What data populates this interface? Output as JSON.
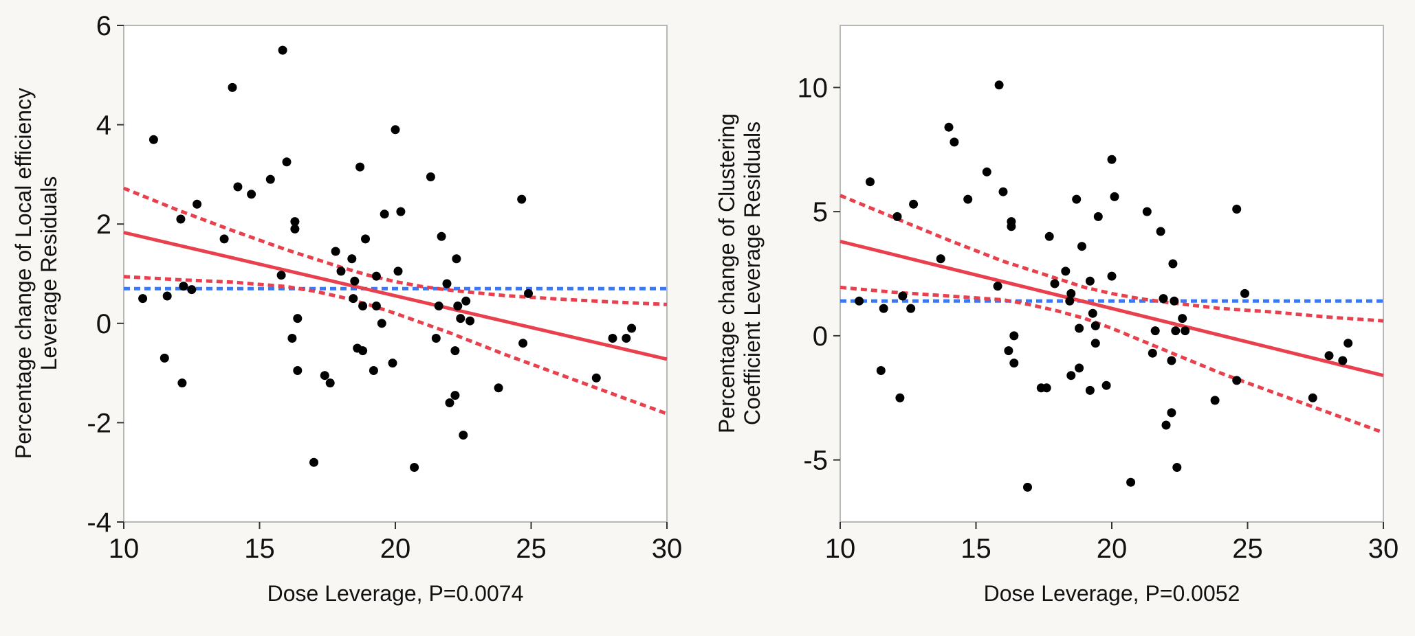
{
  "chart_data": [
    {
      "type": "scatter",
      "title": "",
      "xlabel": "Dose Leverage, P=0.0074",
      "ylabel": [
        "Percentage change of  Local efficiency",
        "Leverage Residuals"
      ],
      "xlim": [
        10,
        30
      ],
      "ylim": [
        -4,
        6
      ],
      "xticks": [
        10,
        15,
        20,
        25,
        30
      ],
      "yticks": [
        -4,
        -2,
        0,
        2,
        4,
        6
      ],
      "grid": false,
      "colors": {
        "points": "#000000",
        "fit": "#e8414d",
        "ci": "#e8414d",
        "mean": "#3b78f2",
        "frame": "#b8b8b8"
      },
      "mean_line": {
        "y": 0.7
      },
      "fit_line": {
        "x": [
          10,
          30
        ],
        "y": [
          1.83,
          -0.72
        ]
      },
      "ci_upper": {
        "x": [
          10,
          12,
          14,
          16,
          18,
          19,
          20,
          21,
          22,
          24,
          26,
          28,
          30
        ],
        "y": [
          2.72,
          2.28,
          1.87,
          1.48,
          1.13,
          0.97,
          0.84,
          0.74,
          0.67,
          0.56,
          0.49,
          0.43,
          0.38
        ]
      },
      "ci_lower": {
        "x": [
          10,
          12,
          14,
          16,
          17,
          18,
          19,
          20,
          22,
          24,
          26,
          28,
          30
        ],
        "y": [
          0.94,
          0.88,
          0.83,
          0.74,
          0.65,
          0.53,
          0.38,
          0.2,
          -0.19,
          -0.62,
          -1.02,
          -1.42,
          -1.82
        ]
      },
      "points": [
        {
          "x": 10.7,
          "y": 0.5
        },
        {
          "x": 11.1,
          "y": 3.7
        },
        {
          "x": 11.5,
          "y": -0.7
        },
        {
          "x": 11.6,
          "y": 0.55
        },
        {
          "x": 12.1,
          "y": 2.1
        },
        {
          "x": 12.15,
          "y": -1.2
        },
        {
          "x": 12.2,
          "y": 0.75
        },
        {
          "x": 12.5,
          "y": 0.68
        },
        {
          "x": 12.7,
          "y": 2.4
        },
        {
          "x": 13.7,
          "y": 1.7
        },
        {
          "x": 14.0,
          "y": 4.75
        },
        {
          "x": 14.2,
          "y": 2.75
        },
        {
          "x": 14.7,
          "y": 2.6
        },
        {
          "x": 15.4,
          "y": 2.9
        },
        {
          "x": 15.8,
          "y": 0.97
        },
        {
          "x": 15.85,
          "y": 5.5
        },
        {
          "x": 16.0,
          "y": 3.25
        },
        {
          "x": 16.2,
          "y": -0.3
        },
        {
          "x": 16.3,
          "y": 2.05
        },
        {
          "x": 16.3,
          "y": 1.9
        },
        {
          "x": 16.4,
          "y": 0.1
        },
        {
          "x": 16.4,
          "y": -0.95
        },
        {
          "x": 17.0,
          "y": -2.8
        },
        {
          "x": 17.4,
          "y": -1.05
        },
        {
          "x": 17.6,
          "y": -1.2
        },
        {
          "x": 17.8,
          "y": 1.45
        },
        {
          "x": 18.0,
          "y": 1.05
        },
        {
          "x": 18.4,
          "y": 1.3
        },
        {
          "x": 18.45,
          "y": 0.5
        },
        {
          "x": 18.5,
          "y": 0.85
        },
        {
          "x": 18.6,
          "y": -0.5
        },
        {
          "x": 18.7,
          "y": 3.15
        },
        {
          "x": 18.8,
          "y": -0.55
        },
        {
          "x": 18.8,
          "y": 0.35
        },
        {
          "x": 18.9,
          "y": 1.7
        },
        {
          "x": 19.3,
          "y": 0.35
        },
        {
          "x": 19.3,
          "y": 0.95
        },
        {
          "x": 19.2,
          "y": -0.95
        },
        {
          "x": 19.5,
          "y": 0.0
        },
        {
          "x": 19.6,
          "y": 2.2
        },
        {
          "x": 19.9,
          "y": -0.8
        },
        {
          "x": 20.0,
          "y": 3.9
        },
        {
          "x": 20.1,
          "y": 1.05
        },
        {
          "x": 20.2,
          "y": 2.25
        },
        {
          "x": 20.7,
          "y": -2.9
        },
        {
          "x": 21.3,
          "y": 2.95
        },
        {
          "x": 21.5,
          "y": -0.3
        },
        {
          "x": 21.7,
          "y": 1.75
        },
        {
          "x": 21.6,
          "y": 0.35
        },
        {
          "x": 21.9,
          "y": 0.8
        },
        {
          "x": 22.0,
          "y": -1.6
        },
        {
          "x": 22.2,
          "y": -0.55
        },
        {
          "x": 22.2,
          "y": -1.45
        },
        {
          "x": 22.25,
          "y": 1.3
        },
        {
          "x": 22.3,
          "y": 0.35
        },
        {
          "x": 22.4,
          "y": 0.1
        },
        {
          "x": 22.5,
          "y": -2.25
        },
        {
          "x": 22.6,
          "y": 0.45
        },
        {
          "x": 22.75,
          "y": 0.05
        },
        {
          "x": 23.8,
          "y": -1.3
        },
        {
          "x": 24.65,
          "y": 2.5
        },
        {
          "x": 24.7,
          "y": -0.4
        },
        {
          "x": 24.9,
          "y": 0.6
        },
        {
          "x": 27.4,
          "y": -1.1
        },
        {
          "x": 28.0,
          "y": -0.3
        },
        {
          "x": 28.5,
          "y": -0.3
        },
        {
          "x": 28.7,
          "y": -0.1
        }
      ]
    },
    {
      "type": "scatter",
      "title": "",
      "xlabel": "Dose Leverage, P=0.0052",
      "ylabel": [
        "Percentage change of Clustering",
        "Coefficient Leverage Residuals"
      ],
      "xlim": [
        10,
        30
      ],
      "ylim": [
        -7.5,
        12.5
      ],
      "xticks": [
        10,
        15,
        20,
        25,
        30
      ],
      "yticks": [
        -5,
        0,
        5,
        10
      ],
      "grid": false,
      "colors": {
        "points": "#000000",
        "fit": "#e8414d",
        "ci": "#e8414d",
        "mean": "#3b78f2",
        "frame": "#b8b8b8"
      },
      "mean_line": {
        "y": 1.4
      },
      "fit_line": {
        "x": [
          10,
          30
        ],
        "y": [
          3.8,
          -1.6
        ]
      },
      "ci_upper": {
        "x": [
          10,
          12,
          14,
          16,
          18,
          19,
          20,
          21,
          22,
          24,
          26,
          28,
          30
        ],
        "y": [
          5.65,
          4.75,
          3.85,
          3.0,
          2.3,
          1.95,
          1.7,
          1.5,
          1.35,
          1.1,
          0.95,
          0.75,
          0.6
        ]
      },
      "ci_lower": {
        "x": [
          10,
          12,
          14,
          16,
          17,
          18,
          19,
          20,
          22,
          24,
          26,
          28,
          30
        ],
        "y": [
          1.95,
          1.75,
          1.6,
          1.45,
          1.25,
          1.0,
          0.7,
          0.3,
          -0.6,
          -1.5,
          -2.3,
          -3.1,
          -3.9
        ]
      },
      "points": [
        {
          "x": 10.7,
          "y": 1.4
        },
        {
          "x": 11.1,
          "y": 6.2
        },
        {
          "x": 11.5,
          "y": -1.4
        },
        {
          "x": 11.6,
          "y": 1.1
        },
        {
          "x": 12.1,
          "y": 4.8
        },
        {
          "x": 12.2,
          "y": -2.5
        },
        {
          "x": 12.3,
          "y": 1.6
        },
        {
          "x": 12.6,
          "y": 1.1
        },
        {
          "x": 12.7,
          "y": 5.3
        },
        {
          "x": 13.7,
          "y": 3.1
        },
        {
          "x": 14.0,
          "y": 8.4
        },
        {
          "x": 14.2,
          "y": 7.8
        },
        {
          "x": 14.7,
          "y": 5.5
        },
        {
          "x": 15.4,
          "y": 6.6
        },
        {
          "x": 15.8,
          "y": 2.0
        },
        {
          "x": 15.85,
          "y": 10.1
        },
        {
          "x": 16.0,
          "y": 5.8
        },
        {
          "x": 16.2,
          "y": -0.6
        },
        {
          "x": 16.3,
          "y": 4.6
        },
        {
          "x": 16.3,
          "y": 4.4
        },
        {
          "x": 16.4,
          "y": 0.0
        },
        {
          "x": 16.4,
          "y": -1.1
        },
        {
          "x": 16.9,
          "y": -6.1
        },
        {
          "x": 17.4,
          "y": -2.1
        },
        {
          "x": 17.6,
          "y": -2.1
        },
        {
          "x": 17.7,
          "y": 4.0
        },
        {
          "x": 17.9,
          "y": 2.1
        },
        {
          "x": 18.3,
          "y": 2.6
        },
        {
          "x": 18.45,
          "y": 1.4
        },
        {
          "x": 18.5,
          "y": 1.7
        },
        {
          "x": 18.5,
          "y": -1.6
        },
        {
          "x": 18.7,
          "y": 5.5
        },
        {
          "x": 18.8,
          "y": -1.3
        },
        {
          "x": 18.8,
          "y": 0.3
        },
        {
          "x": 18.9,
          "y": 3.6
        },
        {
          "x": 19.2,
          "y": 2.2
        },
        {
          "x": 19.3,
          "y": 0.9
        },
        {
          "x": 19.2,
          "y": -2.2
        },
        {
          "x": 19.4,
          "y": 0.4
        },
        {
          "x": 19.4,
          "y": -0.3
        },
        {
          "x": 19.5,
          "y": 4.8
        },
        {
          "x": 19.8,
          "y": -2.0
        },
        {
          "x": 20.0,
          "y": 7.1
        },
        {
          "x": 20.0,
          "y": 2.4
        },
        {
          "x": 20.1,
          "y": 5.6
        },
        {
          "x": 20.7,
          "y": -5.9
        },
        {
          "x": 21.3,
          "y": 5.0
        },
        {
          "x": 21.5,
          "y": -0.7
        },
        {
          "x": 21.6,
          "y": 0.2
        },
        {
          "x": 21.8,
          "y": 4.2
        },
        {
          "x": 21.9,
          "y": 1.5
        },
        {
          "x": 22.0,
          "y": -3.6
        },
        {
          "x": 22.2,
          "y": -1.0
        },
        {
          "x": 22.2,
          "y": -3.1
        },
        {
          "x": 22.25,
          "y": 2.9
        },
        {
          "x": 22.3,
          "y": 1.4
        },
        {
          "x": 22.35,
          "y": 0.2
        },
        {
          "x": 22.4,
          "y": -5.3
        },
        {
          "x": 22.6,
          "y": 0.7
        },
        {
          "x": 22.7,
          "y": 0.2
        },
        {
          "x": 23.8,
          "y": -2.6
        },
        {
          "x": 24.6,
          "y": 5.1
        },
        {
          "x": 24.6,
          "y": -1.8
        },
        {
          "x": 24.9,
          "y": 1.7
        },
        {
          "x": 27.4,
          "y": -2.5
        },
        {
          "x": 28.0,
          "y": -0.8
        },
        {
          "x": 28.5,
          "y": -1.0
        },
        {
          "x": 28.7,
          "y": -0.3
        }
      ]
    }
  ]
}
